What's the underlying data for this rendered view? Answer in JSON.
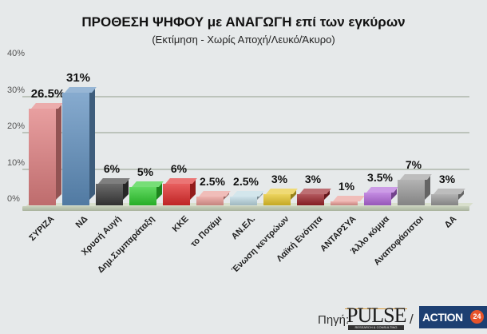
{
  "chart_data": {
    "type": "bar",
    "title": "ΠΡΟΘΕΣΗ ΨΗΦΟΥ με ΑΝΑΓΩΓΗ επί των εγκύρων",
    "subtitle": "(Εκτίμηση  -  Χωρίς Αποχή/Λευκό/Άκυρο)",
    "xlabel": "",
    "ylabel": "",
    "ylim": [
      0,
      40
    ],
    "yticks": [
      "0%",
      "10%",
      "20%",
      "30%",
      "40%"
    ],
    "grid": true,
    "categories": [
      "ΣΥΡΙΖΑ",
      "ΝΔ",
      "Χρυσή Αυγή",
      "Δημ.Συμπαράταξη",
      "ΚΚΕ",
      "το Ποτάμι",
      "ΑΝ.ΕΛ.",
      "Ένωση κεντρώων",
      "Λαϊκή Ενότητα",
      "ΑΝΤΑΡΣΥΑ",
      "Άλλο κόμμα",
      "Αναποφάσιστοι",
      "ΔΑ"
    ],
    "values": [
      26.5,
      31,
      6,
      5,
      6,
      2.5,
      2.5,
      3,
      3,
      1,
      3.5,
      7,
      3
    ],
    "value_labels": [
      "26.5%",
      "31%",
      "6%",
      "5%",
      "6%",
      "2.5%",
      "2.5%",
      "3%",
      "3%",
      "1%",
      "3.5%",
      "7%",
      "3%"
    ],
    "colors": [
      "#e07f80",
      "#5f8fbf",
      "#3a3a3a",
      "#2ecc2e",
      "#e02a2a",
      "#e89a94",
      "#bcd8e2",
      "#e6c62a",
      "#9a2228",
      "#e89a94",
      "#b066d8",
      "#9a9a9a",
      "#9a9a9a"
    ]
  },
  "footer": {
    "source_label": "Πηγή:",
    "pulse_logo": "PULSE",
    "pulse_sub": "RESEARCH & CONSULTING",
    "separator": "/",
    "action_logo": "ACTION",
    "action_num": "24"
  }
}
